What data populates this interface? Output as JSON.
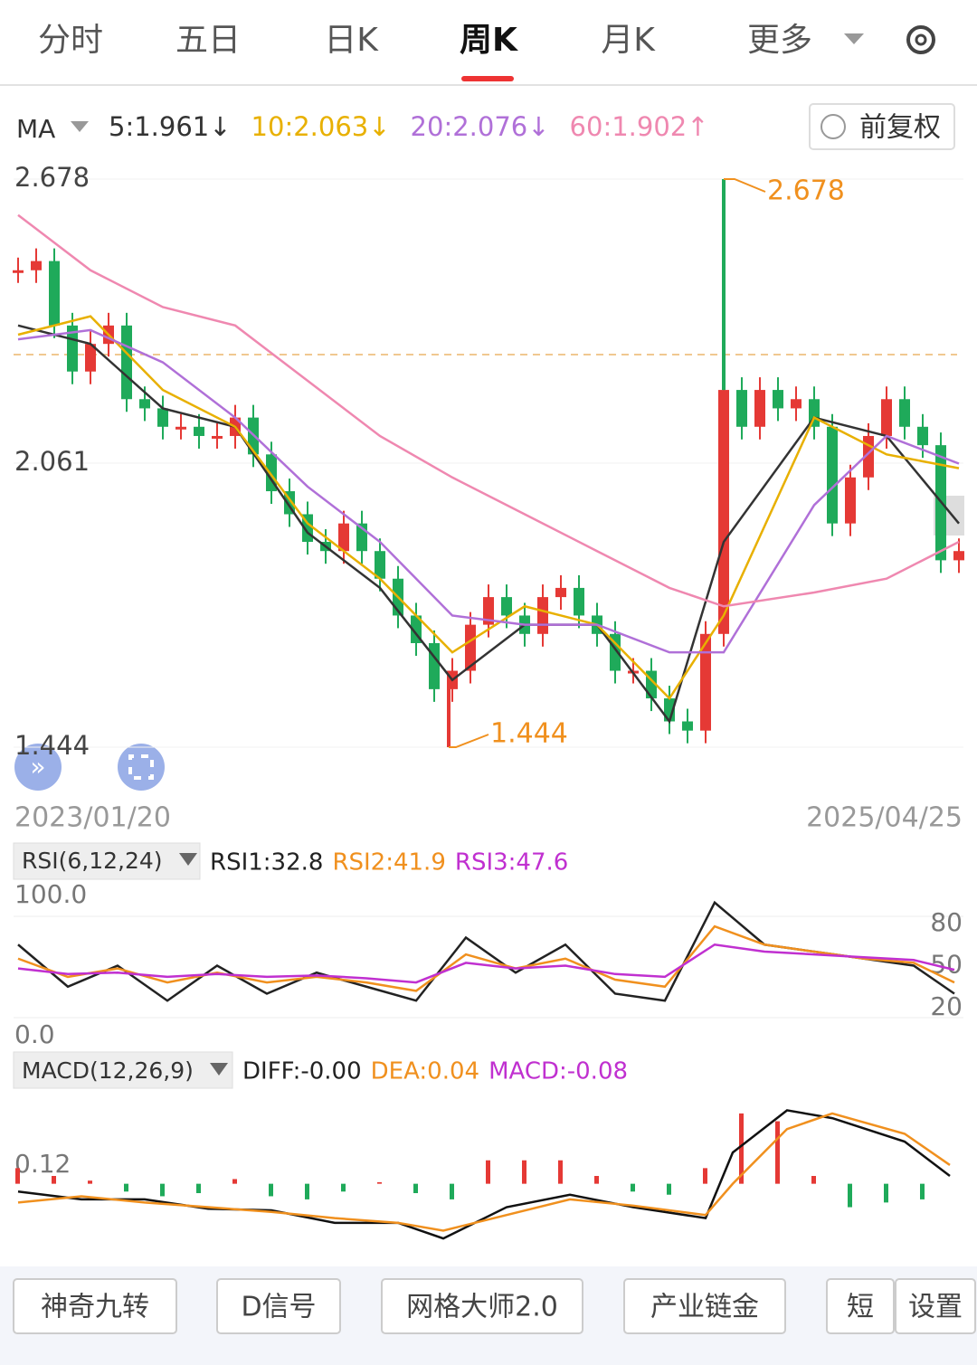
{
  "tabs": [
    "分时",
    "五日",
    "日K",
    "周K",
    "月K",
    "更多"
  ],
  "ma_bar": {
    "label": "MA",
    "items": [
      {
        "text": "5:1.961↓",
        "color": "#333333"
      },
      {
        "text": "10:2.063↓",
        "color": "#e8b000"
      },
      {
        "text": "20:2.076↓",
        "color": "#b070d8"
      },
      {
        "text": "60:1.902↑",
        "color": "#ef88b0"
      }
    ],
    "adjust": "前复权"
  },
  "price": {
    "ylim": [
      1.444,
      2.678
    ],
    "yticks": [
      2.678,
      2.061,
      1.444
    ],
    "high": 2.678,
    "high_index": 39,
    "low": 1.444,
    "low_index": 24,
    "dates": [
      "2023/01/20",
      "2025/04/25"
    ],
    "closes": [
      2.48,
      2.5,
      2.36,
      2.26,
      2.32,
      2.36,
      2.2,
      2.18,
      2.14,
      2.14,
      2.12,
      2.12,
      2.16,
      2.08,
      2.0,
      1.95,
      1.89,
      1.87,
      1.93,
      1.87,
      1.81,
      1.73,
      1.67,
      1.57,
      1.61,
      1.71,
      1.77,
      1.73,
      1.69,
      1.77,
      1.79,
      1.73,
      1.69,
      1.61,
      1.61,
      1.55,
      1.5,
      1.48,
      1.69,
      2.22,
      2.14,
      2.22,
      2.18,
      2.2,
      2.14,
      1.93,
      2.03,
      2.12,
      2.2,
      2.14,
      2.1,
      1.85,
      1.87
    ],
    "ma_x": [
      20,
      100,
      180,
      260,
      340,
      420,
      500,
      580,
      660,
      740,
      800,
      900,
      980,
      1060
    ],
    "ma": [
      {
        "color": "#333333",
        "values": [
          2.36,
          2.32,
          2.18,
          2.14,
          1.91,
          1.79,
          1.59,
          1.71,
          1.71,
          1.5,
          1.89,
          2.16,
          2.12,
          1.93
        ]
      },
      {
        "color": "#e8b000",
        "values": [
          2.34,
          2.38,
          2.22,
          2.14,
          1.93,
          1.81,
          1.65,
          1.75,
          1.71,
          1.55,
          1.73,
          2.16,
          2.08,
          2.05
        ]
      },
      {
        "color": "#b070d8",
        "values": [
          2.33,
          2.35,
          2.28,
          2.16,
          2.01,
          1.89,
          1.73,
          1.71,
          1.71,
          1.65,
          1.65,
          1.97,
          2.12,
          2.06
        ]
      },
      {
        "color": "#ef88b0",
        "values": [
          2.6,
          2.48,
          2.4,
          2.36,
          2.24,
          2.12,
          2.03,
          1.95,
          1.87,
          1.79,
          1.75,
          1.78,
          1.81,
          1.89
        ]
      }
    ]
  },
  "rsi": {
    "selector": "RSI(6,12,24)",
    "legend": [
      {
        "text": "RSI1:32.8",
        "color": "#222222"
      },
      {
        "text": "RSI2:41.9",
        "color": "#f0901e"
      },
      {
        "text": "RSI3:47.6",
        "color": "#c030d0"
      }
    ],
    "ylim": [
      0,
      100
    ],
    "yticks": [
      {
        "value": 100,
        "label": "100.0"
      },
      {
        "value": 0,
        "label": "0.0"
      }
    ],
    "y2ticks": [
      80,
      50,
      20
    ],
    "x": [
      20,
      75,
      130,
      185,
      240,
      295,
      350,
      405,
      460,
      515,
      570,
      625,
      680,
      735,
      790,
      845,
      900,
      955,
      1010,
      1055
    ],
    "series": [
      {
        "color": "#222222",
        "values": [
          65,
          35,
          50,
          25,
          50,
          30,
          45,
          35,
          25,
          70,
          45,
          65,
          30,
          25,
          95,
          65,
          60,
          55,
          50,
          30
        ]
      },
      {
        "color": "#f0901e",
        "values": [
          55,
          42,
          48,
          38,
          45,
          38,
          42,
          38,
          32,
          58,
          48,
          55,
          40,
          35,
          78,
          65,
          60,
          55,
          52,
          38
        ]
      },
      {
        "color": "#c030d0",
        "values": [
          48,
          44,
          45,
          42,
          44,
          42,
          43,
          41,
          38,
          52,
          48,
          50,
          44,
          42,
          65,
          60,
          58,
          56,
          54,
          47
        ]
      }
    ]
  },
  "macd": {
    "selector": "MACD(12,26,9)",
    "legend": [
      {
        "text": "DIFF:-0.00",
        "color": "#222222"
      },
      {
        "text": "DEA:0.04",
        "color": "#f0901e"
      },
      {
        "text": "MACD:-0.08",
        "color": "#c030d0"
      }
    ],
    "ylim": [
      -0.5,
      0.6
    ],
    "yticks": [
      0.12
    ],
    "hist": [
      0.1,
      0.05,
      0.02,
      -0.05,
      -0.08,
      -0.06,
      0.03,
      -0.08,
      -0.1,
      -0.05,
      0.01,
      -0.06,
      -0.1,
      0.15,
      0.15,
      0.15,
      0.05,
      -0.05,
      -0.07,
      0.1,
      0.45,
      0.4,
      0.05,
      -0.15,
      -0.12,
      -0.1
    ],
    "x": [
      20,
      90,
      160,
      230,
      300,
      370,
      440,
      490,
      560,
      630,
      700,
      780,
      810,
      870,
      920,
      1000,
      1050
    ],
    "diff": [
      -0.05,
      -0.1,
      -0.1,
      -0.16,
      -0.17,
      -0.25,
      -0.25,
      -0.35,
      -0.15,
      -0.07,
      -0.15,
      -0.22,
      0.2,
      0.47,
      0.42,
      0.27,
      0.05
    ],
    "dea": [
      -0.12,
      -0.08,
      -0.12,
      -0.15,
      -0.18,
      -0.22,
      -0.25,
      -0.3,
      -0.2,
      -0.1,
      -0.14,
      -0.2,
      0,
      0.35,
      0.45,
      0.32,
      0.12
    ]
  },
  "buttons": [
    "神奇九转",
    "D信号",
    "网格大师2.0",
    "产业链金",
    "短",
    "设置"
  ]
}
